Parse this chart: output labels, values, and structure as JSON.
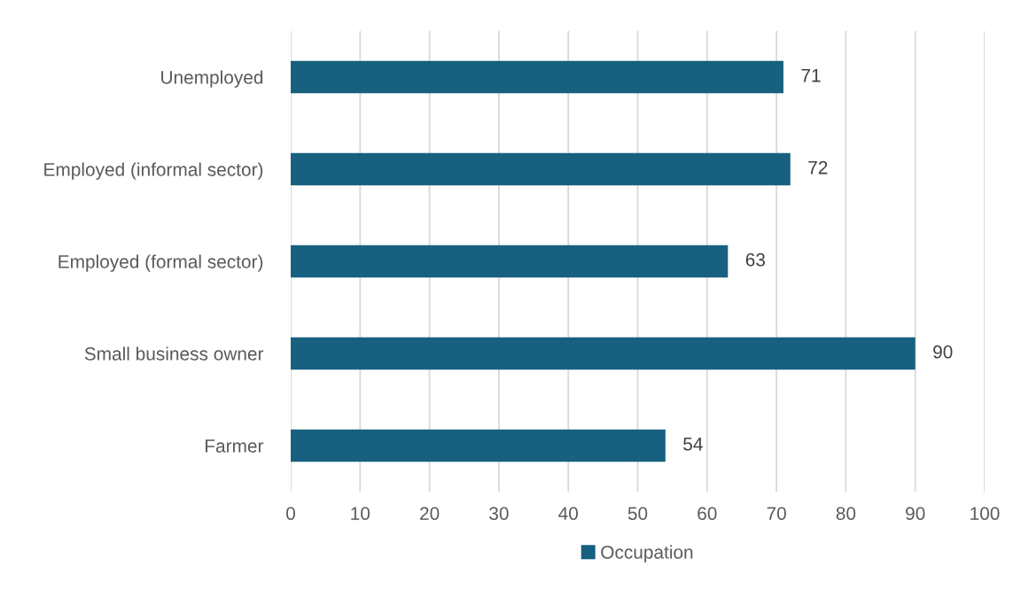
{
  "chart_data": {
    "type": "bar",
    "orientation": "horizontal",
    "categories": [
      "Unemployed",
      "Employed (informal sector)",
      "Employed (formal sector)",
      "Small business owner",
      "Farmer"
    ],
    "series": [
      {
        "name": "Occupation",
        "color": "#17607f",
        "values": [
          71,
          72,
          63,
          90,
          54
        ]
      }
    ],
    "xlim": [
      0,
      100
    ],
    "xticks": [
      0,
      10,
      20,
      30,
      40,
      50,
      60,
      70,
      80,
      90,
      100
    ],
    "grid": "x",
    "legend": "bottom",
    "data_labels": true
  }
}
